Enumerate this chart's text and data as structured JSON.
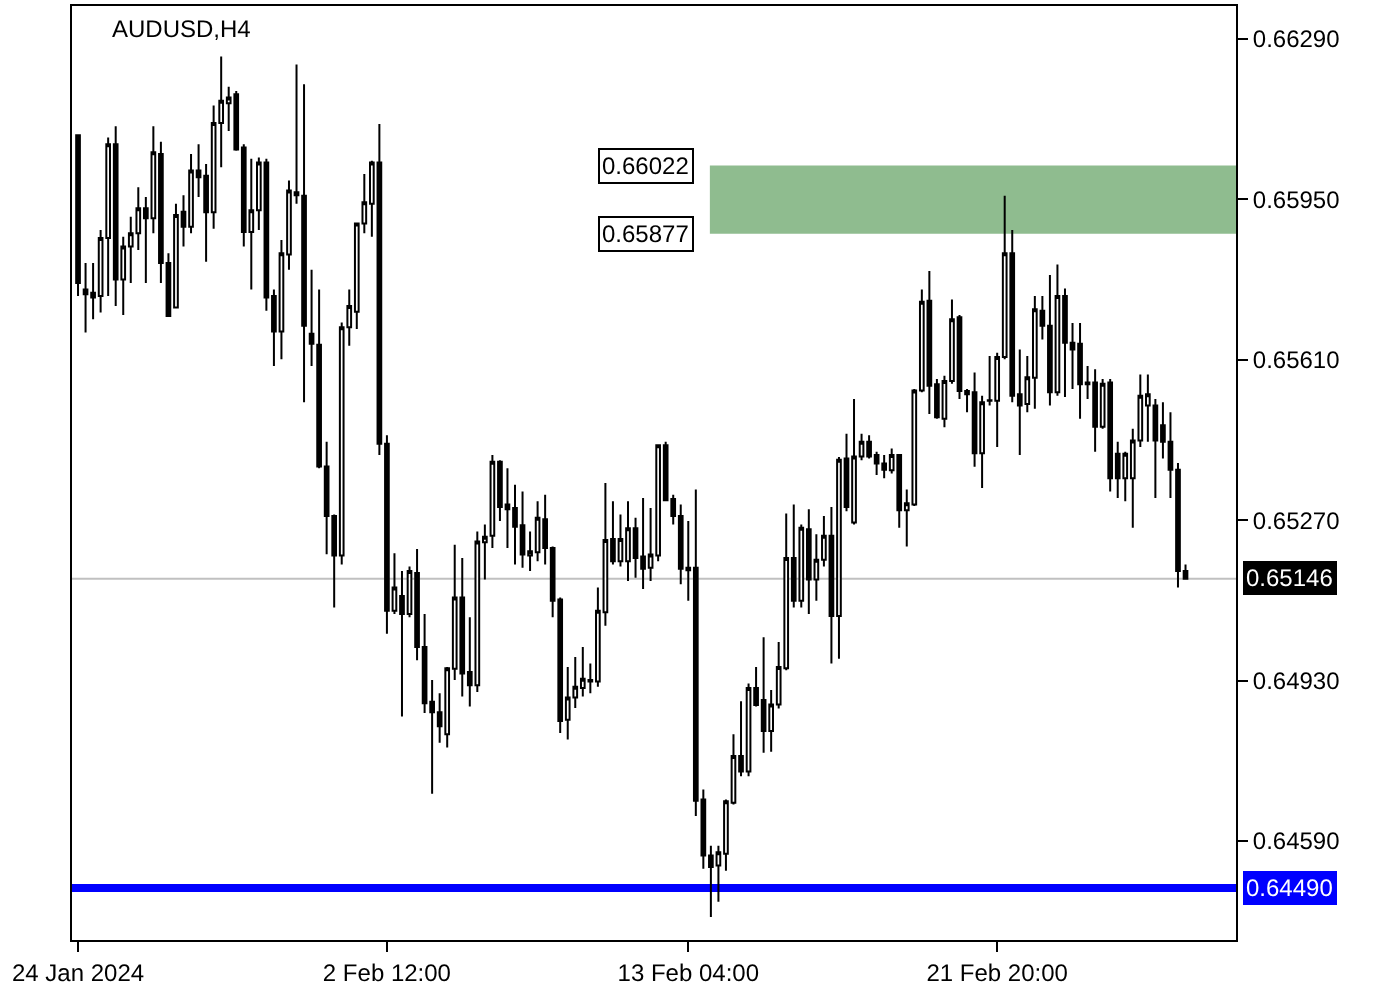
{
  "chart_data": {
    "type": "candlestick",
    "title": "AUDUSD,H4",
    "categories": [
      "24 Jan 2024",
      null,
      null,
      null,
      null,
      null,
      null,
      null,
      null,
      null,
      null,
      null,
      null,
      null,
      null,
      null,
      null,
      null,
      null,
      null,
      null,
      null,
      null,
      null,
      null,
      null,
      null,
      null,
      null,
      null,
      null,
      null,
      null,
      null,
      null,
      null,
      null,
      null,
      null,
      null,
      null,
      "2 Feb 12:00",
      null,
      null,
      null,
      null,
      null,
      null,
      null,
      null,
      null,
      null,
      null,
      null,
      null,
      null,
      null,
      null,
      null,
      null,
      null,
      null,
      null,
      null,
      null,
      null,
      null,
      null,
      null,
      null,
      null,
      null,
      null,
      null,
      null,
      null,
      null,
      null,
      null,
      null,
      null,
      "13 Feb 04:00",
      null,
      null,
      null,
      null,
      null,
      null,
      null,
      null,
      null,
      null,
      null,
      null,
      null,
      null,
      null,
      null,
      null,
      null,
      null,
      null,
      null,
      null,
      null,
      null,
      null,
      null,
      null,
      null,
      null,
      null,
      null,
      null,
      null,
      null,
      null,
      null,
      null,
      null,
      null,
      null,
      "21 Feb 20:00",
      null,
      null,
      null,
      null,
      null,
      null,
      null,
      null,
      null,
      null,
      null,
      null,
      null,
      null,
      null,
      null,
      null,
      null,
      null,
      null,
      null,
      null,
      null,
      null,
      null
    ],
    "ohlc": [
      [
        0.66086,
        0.66088,
        0.65745,
        0.65773
      ],
      [
        0.65759,
        0.65815,
        0.65668,
        0.65749
      ],
      [
        0.65752,
        0.65815,
        0.65696,
        0.65742
      ],
      [
        0.65745,
        0.65885,
        0.6571,
        0.65868
      ],
      [
        0.65868,
        0.66081,
        0.65745,
        0.66067
      ],
      [
        0.66067,
        0.66105,
        0.65724,
        0.6578
      ],
      [
        0.6578,
        0.65871,
        0.65705,
        0.6585
      ],
      [
        0.6585,
        0.65913,
        0.65773,
        0.65878
      ],
      [
        0.65878,
        0.65976,
        0.65843,
        0.65931
      ],
      [
        0.65931,
        0.65955,
        0.65773,
        0.6591
      ],
      [
        0.6591,
        0.66105,
        0.65878,
        0.6605
      ],
      [
        0.66046,
        0.66072,
        0.65773,
        0.65815
      ],
      [
        0.65815,
        0.65836,
        0.65703,
        0.65703
      ],
      [
        0.65721,
        0.65941,
        0.65721,
        0.65917
      ],
      [
        0.65924,
        0.65959,
        0.6585,
        0.65892
      ],
      [
        0.65892,
        0.66046,
        0.65878,
        0.66011
      ],
      [
        0.66011,
        0.66067,
        0.65955,
        0.65997
      ],
      [
        0.66,
        0.66025,
        0.65818,
        0.65923
      ],
      [
        0.65923,
        0.66149,
        0.65888,
        0.66112
      ],
      [
        0.66112,
        0.66253,
        0.66018,
        0.66159
      ],
      [
        0.66154,
        0.66189,
        0.66095,
        0.66166
      ],
      [
        0.66173,
        0.6618,
        0.66053,
        0.66056
      ],
      [
        0.6606,
        0.66067,
        0.6585,
        0.65881
      ],
      [
        0.65881,
        0.66036,
        0.65759,
        0.65927
      ],
      [
        0.65927,
        0.66039,
        0.65885,
        0.66028
      ],
      [
        0.66028,
        0.66036,
        0.65714,
        0.65742
      ],
      [
        0.65745,
        0.65759,
        0.65597,
        0.6567
      ],
      [
        0.6567,
        0.65864,
        0.65611,
        0.65836
      ],
      [
        0.65833,
        0.6599,
        0.65801,
        0.65969
      ],
      [
        0.65959,
        0.66236,
        0.65941,
        0.65965
      ],
      [
        0.65958,
        0.66194,
        0.6552,
        0.65682
      ],
      [
        0.65665,
        0.65801,
        0.65597,
        0.65644
      ],
      [
        0.65642,
        0.65759,
        0.6538,
        0.65384
      ],
      [
        0.65384,
        0.65436,
        0.65198,
        0.65279
      ],
      [
        0.65279,
        0.65282,
        0.65085,
        0.65195
      ],
      [
        0.65195,
        0.65689,
        0.65176,
        0.65679
      ],
      [
        0.65679,
        0.65759,
        0.6564,
        0.65724
      ],
      [
        0.65712,
        0.65899,
        0.65675,
        0.65899
      ],
      [
        0.65899,
        0.66004,
        0.65878,
        0.65944
      ],
      [
        0.65941,
        0.66032,
        0.65871,
        0.66028
      ],
      [
        0.66028,
        0.6611,
        0.65408,
        0.65432
      ],
      [
        0.65432,
        0.6545,
        0.65029,
        0.65078
      ],
      [
        0.65078,
        0.652,
        0.65071,
        0.65127
      ],
      [
        0.65109,
        0.65162,
        0.64854,
        0.65071
      ],
      [
        0.65071,
        0.65172,
        0.65064,
        0.65162
      ],
      [
        0.65158,
        0.65209,
        0.64973,
        0.65001
      ],
      [
        0.65001,
        0.65071,
        0.64861,
        0.64882
      ],
      [
        0.64885,
        0.64931,
        0.6469,
        0.64863
      ],
      [
        0.64863,
        0.64903,
        0.64798,
        0.64833
      ],
      [
        0.64816,
        0.64959,
        0.64788,
        0.64956
      ],
      [
        0.64955,
        0.65218,
        0.64931,
        0.65106
      ],
      [
        0.65106,
        0.6519,
        0.64896,
        0.64945
      ],
      [
        0.64948,
        0.65064,
        0.64875,
        0.6492
      ],
      [
        0.6492,
        0.65246,
        0.64906,
        0.65225
      ],
      [
        0.65223,
        0.65261,
        0.65144,
        0.65235
      ],
      [
        0.65237,
        0.65408,
        0.65211,
        0.65394
      ],
      [
        0.65394,
        0.65397,
        0.65268,
        0.65298
      ],
      [
        0.65303,
        0.6538,
        0.65211,
        0.65293
      ],
      [
        0.65296,
        0.65345,
        0.65176,
        0.65256
      ],
      [
        0.65259,
        0.65331,
        0.65169,
        0.65197
      ],
      [
        0.65195,
        0.65246,
        0.65162,
        0.65204
      ],
      [
        0.65202,
        0.6531,
        0.65183,
        0.65275
      ],
      [
        0.65272,
        0.65324,
        0.65176,
        0.65211
      ],
      [
        0.65211,
        0.65214,
        0.65064,
        0.65099
      ],
      [
        0.65102,
        0.65106,
        0.64819,
        0.64844
      ],
      [
        0.64847,
        0.64959,
        0.64805,
        0.64894
      ],
      [
        0.64894,
        0.6498,
        0.64872,
        0.64917
      ],
      [
        0.64914,
        0.65001,
        0.64896,
        0.64934
      ],
      [
        0.64931,
        0.64966,
        0.64903,
        0.64928
      ],
      [
        0.64928,
        0.65127,
        0.64917,
        0.65078
      ],
      [
        0.65075,
        0.65349,
        0.65046,
        0.65228
      ],
      [
        0.6523,
        0.6531,
        0.65176,
        0.65183
      ],
      [
        0.65183,
        0.65282,
        0.65172,
        0.6523
      ],
      [
        0.65183,
        0.6531,
        0.65141,
        0.65253
      ],
      [
        0.65253,
        0.65275,
        0.65148,
        0.6519
      ],
      [
        0.65193,
        0.65317,
        0.65124,
        0.65167
      ],
      [
        0.65169,
        0.65296,
        0.65141,
        0.65197
      ],
      [
        0.65195,
        0.65429,
        0.65183,
        0.65429
      ],
      [
        0.65429,
        0.65436,
        0.6531,
        0.65312
      ],
      [
        0.65315,
        0.65324,
        0.65261,
        0.65279
      ],
      [
        0.65279,
        0.65303,
        0.65134,
        0.65167
      ],
      [
        0.65169,
        0.65268,
        0.65099,
        0.65164
      ],
      [
        0.65169,
        0.65335,
        0.64643,
        0.64675
      ],
      [
        0.64678,
        0.64699,
        0.64531,
        0.64559
      ],
      [
        0.64559,
        0.6458,
        0.64429,
        0.64535
      ],
      [
        0.64538,
        0.6458,
        0.64461,
        0.64566
      ],
      [
        0.64563,
        0.64678,
        0.64527,
        0.64674
      ],
      [
        0.64671,
        0.64816,
        0.64667,
        0.6477
      ],
      [
        0.6477,
        0.64886,
        0.64727,
        0.64737
      ],
      [
        0.64737,
        0.64924,
        0.64727,
        0.64914
      ],
      [
        0.64914,
        0.64959,
        0.64875,
        0.64878
      ],
      [
        0.64889,
        0.65022,
        0.64777,
        0.64823
      ],
      [
        0.64823,
        0.6491,
        0.64779,
        0.64879
      ],
      [
        0.64879,
        0.65012,
        0.64871,
        0.64959
      ],
      [
        0.64956,
        0.65284,
        0.64952,
        0.6519
      ],
      [
        0.6519,
        0.65303,
        0.65085,
        0.65099
      ],
      [
        0.65099,
        0.65261,
        0.65085,
        0.65254
      ],
      [
        0.65251,
        0.65293,
        0.65071,
        0.65144
      ],
      [
        0.65144,
        0.6524,
        0.65099,
        0.65186
      ],
      [
        0.65186,
        0.65279,
        0.65172,
        0.65237
      ],
      [
        0.65237,
        0.65298,
        0.64966,
        0.65067
      ],
      [
        0.65067,
        0.65404,
        0.64976,
        0.65398
      ],
      [
        0.65401,
        0.65453,
        0.65289,
        0.65298
      ],
      [
        0.65265,
        0.65527,
        0.65261,
        0.65405
      ],
      [
        0.65405,
        0.65453,
        0.65397,
        0.65436
      ],
      [
        0.65436,
        0.6545,
        0.65401,
        0.65405
      ],
      [
        0.65408,
        0.65415,
        0.65366,
        0.6539
      ],
      [
        0.6539,
        0.65408,
        0.65359,
        0.65377
      ],
      [
        0.65376,
        0.65422,
        0.65369,
        0.65408
      ],
      [
        0.65408,
        0.65408,
        0.65254,
        0.65291
      ],
      [
        0.65291,
        0.65335,
        0.65214,
        0.65306
      ],
      [
        0.65303,
        0.65548,
        0.653,
        0.65545
      ],
      [
        0.65545,
        0.65759,
        0.65541,
        0.65733
      ],
      [
        0.65735,
        0.65798,
        0.65495,
        0.65555
      ],
      [
        0.65558,
        0.65569,
        0.65485,
        0.65488
      ],
      [
        0.65485,
        0.65576,
        0.65467,
        0.65565
      ],
      [
        0.65565,
        0.65738,
        0.65559,
        0.65696
      ],
      [
        0.657,
        0.65705,
        0.65527,
        0.65544
      ],
      [
        0.65544,
        0.65548,
        0.65499,
        0.65537
      ],
      [
        0.65541,
        0.65583,
        0.65383,
        0.65412
      ],
      [
        0.65412,
        0.65534,
        0.65338,
        0.6552
      ],
      [
        0.65523,
        0.65618,
        0.65513,
        0.65524
      ],
      [
        0.65523,
        0.65625,
        0.65425,
        0.65616
      ],
      [
        0.65616,
        0.65958,
        0.65611,
        0.65836
      ],
      [
        0.65836,
        0.65885,
        0.6552,
        0.65534
      ],
      [
        0.65537,
        0.65632,
        0.65408,
        0.65513
      ],
      [
        0.65516,
        0.65618,
        0.65499,
        0.65573
      ],
      [
        0.65572,
        0.65745,
        0.65506,
        0.65717
      ],
      [
        0.65714,
        0.65745,
        0.65653,
        0.65682
      ],
      [
        0.65682,
        0.6579,
        0.65513,
        0.65541
      ],
      [
        0.65541,
        0.65812,
        0.65534,
        0.65745
      ],
      [
        0.65745,
        0.65761,
        0.65531,
        0.65646
      ],
      [
        0.65646,
        0.65688,
        0.65548,
        0.65632
      ],
      [
        0.65644,
        0.65688,
        0.65485,
        0.65558
      ],
      [
        0.65562,
        0.65597,
        0.65527,
        0.65558
      ],
      [
        0.65562,
        0.6559,
        0.65415,
        0.65468
      ],
      [
        0.65468,
        0.65569,
        0.65464,
        0.65559
      ],
      [
        0.65562,
        0.65569,
        0.65331,
        0.65359
      ],
      [
        0.65411,
        0.65436,
        0.65317,
        0.65359
      ],
      [
        0.65359,
        0.65415,
        0.6531,
        0.65411
      ],
      [
        0.65359,
        0.65464,
        0.65254,
        0.65439
      ],
      [
        0.65439,
        0.65579,
        0.65425,
        0.65534
      ],
      [
        0.65513,
        0.65579,
        0.65436,
        0.65537
      ],
      [
        0.65513,
        0.65527,
        0.65317,
        0.65439
      ],
      [
        0.65471,
        0.6552,
        0.65401,
        0.65436
      ],
      [
        0.65436,
        0.65499,
        0.65317,
        0.65377
      ],
      [
        0.65377,
        0.65391,
        0.65127,
        0.65162
      ],
      [
        0.65162,
        0.65176,
        0.65144,
        0.65146
      ]
    ],
    "ylim": [
      0.6438,
      0.6636
    ],
    "yticks": [
      {
        "value": 0.6629,
        "label": "0.66290"
      },
      {
        "value": 0.6595,
        "label": "0.65950"
      },
      {
        "value": 0.6561,
        "label": "0.65610"
      },
      {
        "value": 0.6527,
        "label": "0.65270"
      },
      {
        "value": 0.6493,
        "label": "0.64930"
      },
      {
        "value": 0.6459,
        "label": "0.64590"
      }
    ],
    "ref_lines": [
      {
        "axis": "y",
        "value": 0.65146,
        "label": "0.65146",
        "color": "#c0c0c0"
      },
      {
        "axis": "y",
        "value": 0.6449,
        "label": "0.64490",
        "color": "#0000ff"
      }
    ],
    "bands": [
      {
        "axis": "y",
        "from": 0.65877,
        "to": 0.66022,
        "color": "#8fbc8f",
        "label": "0.66022"
      }
    ],
    "annotations": [
      "0.65877"
    ]
  }
}
